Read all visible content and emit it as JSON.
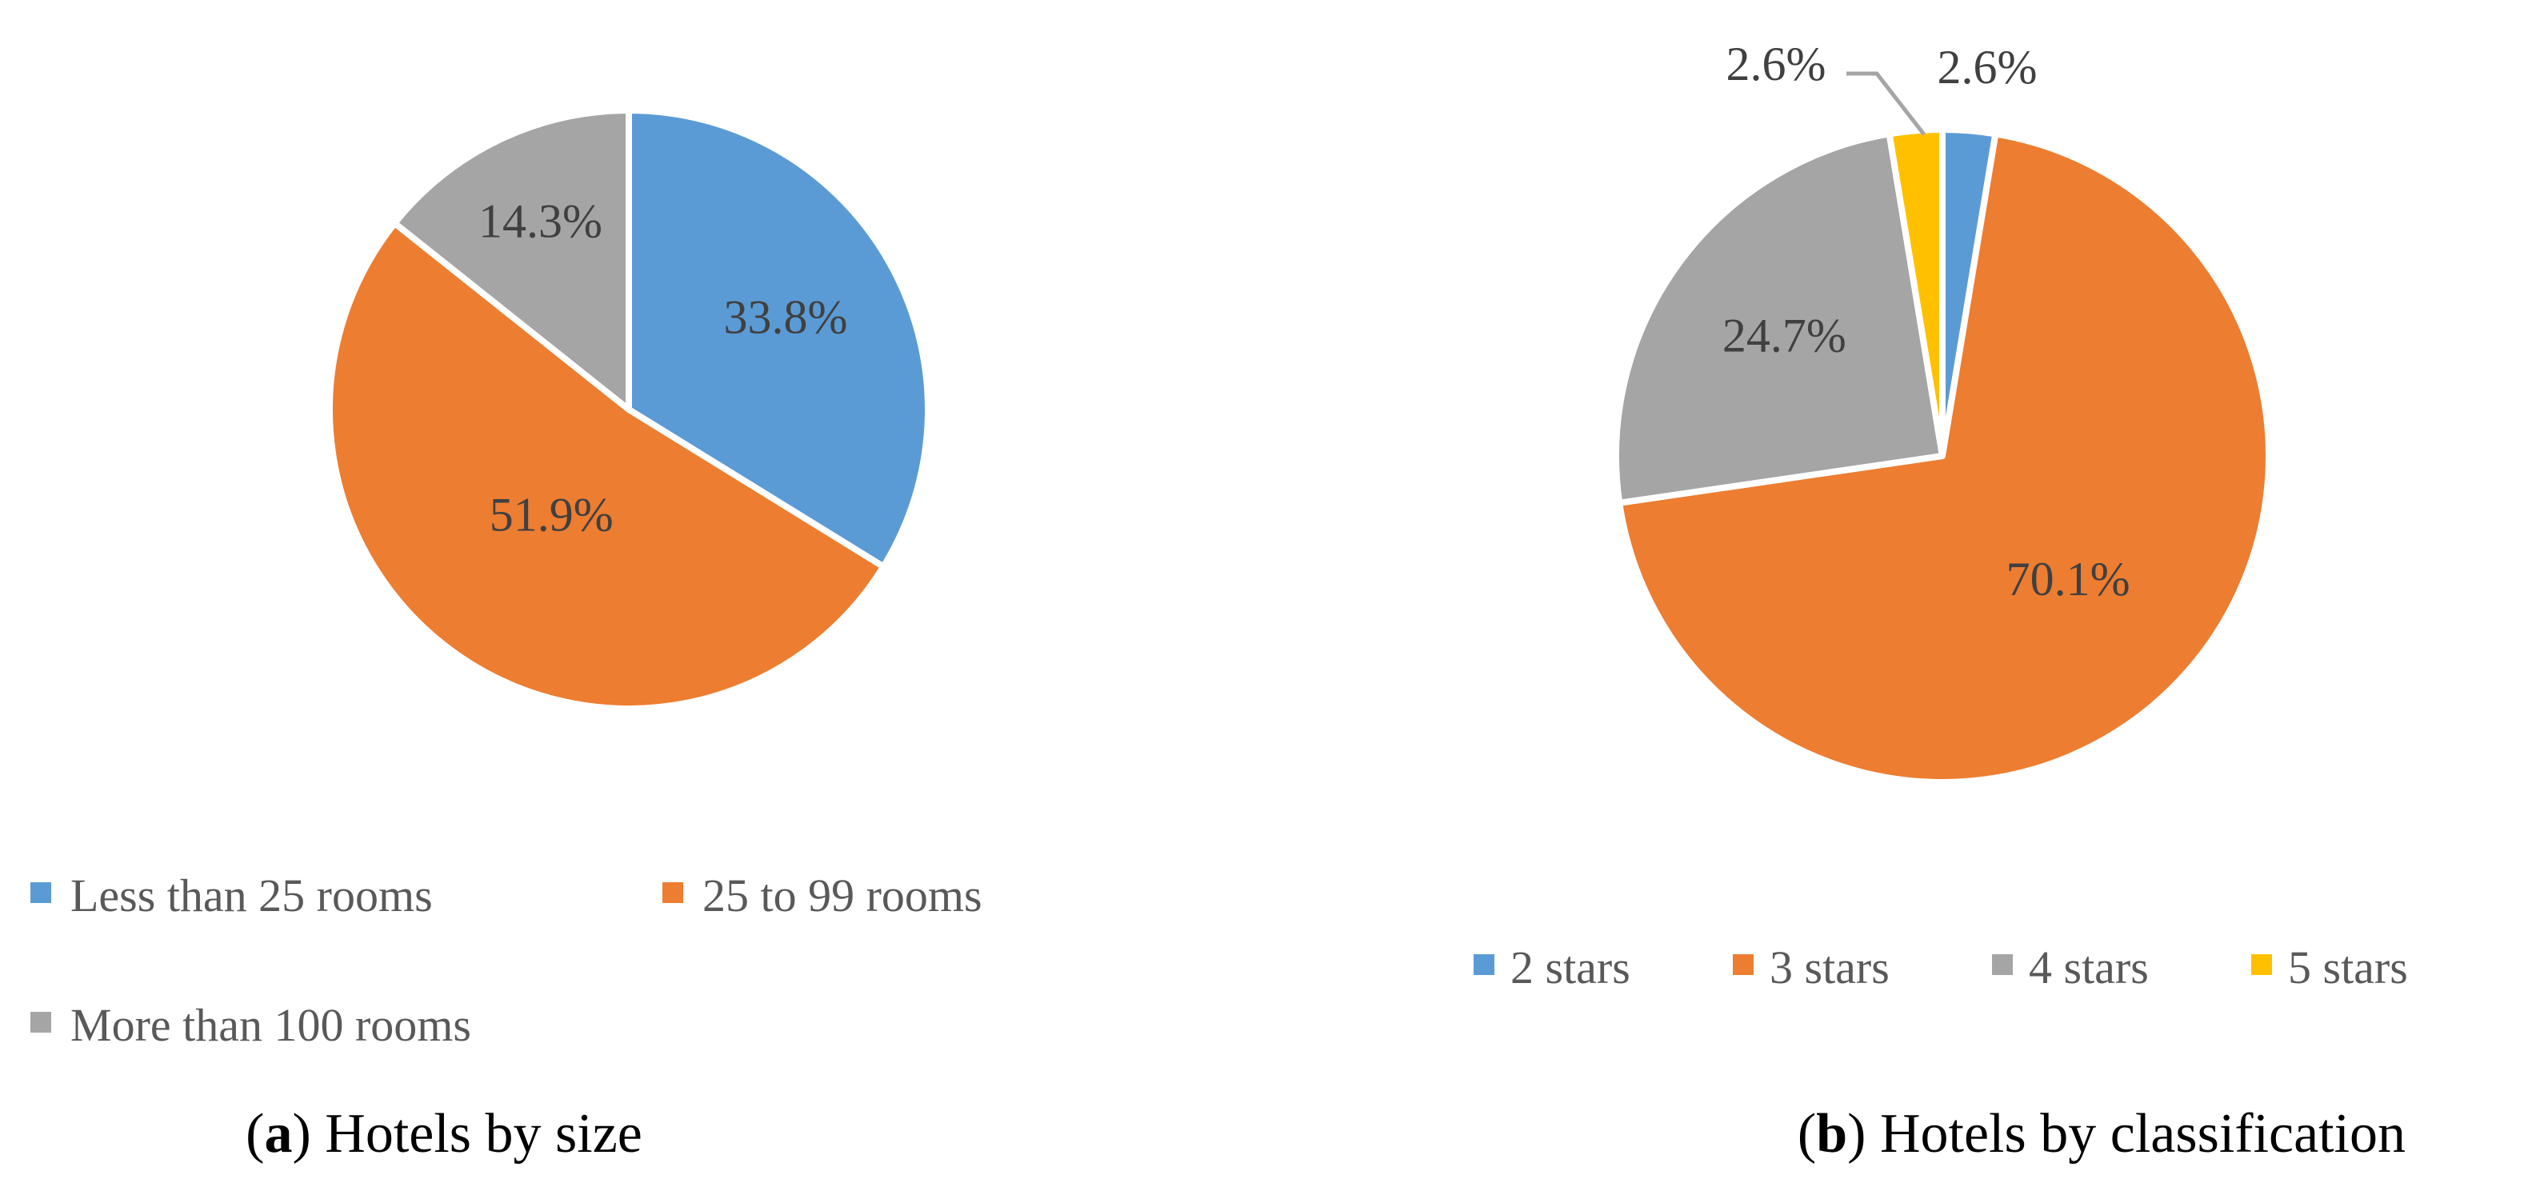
{
  "chart_data": [
    {
      "type": "pie",
      "caption_letter": "a",
      "caption_text": "Hotels by size",
      "legend_position": "bottom",
      "categories": [
        "Less than 25 rooms",
        "25 to 99 rooms",
        "More than 100 rooms"
      ],
      "values": [
        33.8,
        51.9,
        14.3
      ],
      "labels": [
        "33.8%",
        "51.9%",
        "14.3%"
      ],
      "colors": [
        "#5B9BD5",
        "#ED7D31",
        "#A5A5A5"
      ]
    },
    {
      "type": "pie",
      "caption_letter": "b",
      "caption_text": "Hotels by classification",
      "legend_position": "bottom",
      "categories": [
        "2 stars",
        "3 stars",
        "4 stars",
        "5 stars"
      ],
      "values": [
        2.6,
        70.1,
        24.7,
        2.6
      ],
      "labels": [
        "2.6%",
        "70.1%",
        "24.7%",
        "2.6%"
      ],
      "colors": [
        "#5B9BD5",
        "#ED7D31",
        "#A5A5A5",
        "#FFC000"
      ]
    }
  ]
}
